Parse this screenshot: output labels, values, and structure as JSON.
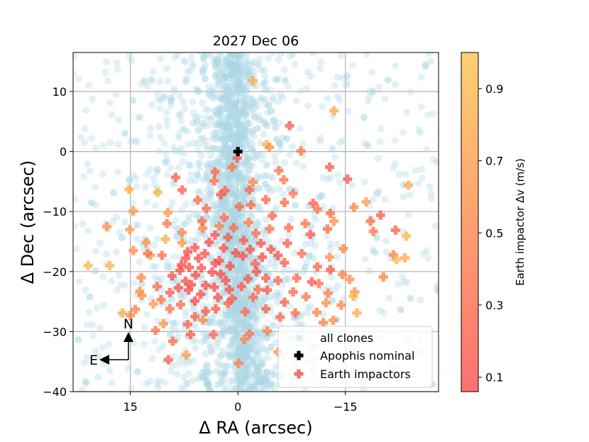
{
  "chart_data": {
    "type": "scatter",
    "title": "2027 Dec 06",
    "xlabel": "Δ RA (arcsec)",
    "ylabel": "Δ Dec (arcsec)",
    "xlim": [
      23,
      -28
    ],
    "ylim": [
      -40,
      16.5
    ],
    "xticks": [
      15,
      0,
      -15
    ],
    "xtick_labels": [
      "15",
      "0",
      "−15"
    ],
    "yticks": [
      10,
      0,
      -10,
      -20,
      -30,
      -40
    ],
    "ytick_labels": [
      "10",
      "0",
      "−10",
      "−20",
      "−30",
      "−40"
    ],
    "grid": true,
    "legend": {
      "position": "lower-right",
      "entries": [
        {
          "label": "all clones",
          "marker": "circle",
          "color": "#add8e6"
        },
        {
          "label": "Apophis nominal",
          "marker": "plus",
          "color": "#000000"
        },
        {
          "label": "Earth impactors",
          "marker": "plus",
          "color": "#e8443a"
        }
      ]
    },
    "colorbar": {
      "label": "Earth impactor Δv (m/s)",
      "range": [
        0.06,
        1.0
      ],
      "ticks": [
        0.1,
        0.3,
        0.5,
        0.7,
        0.9
      ],
      "tick_labels": [
        "0.1",
        "0.3",
        "0.5",
        "0.7",
        "0.9"
      ],
      "colormap": [
        "#ff4040",
        "#ffc040"
      ]
    },
    "compass": {
      "north": "N",
      "east": "E"
    },
    "series": [
      {
        "name": "Apophis nominal",
        "color": "#000000",
        "points": [
          [
            0.0,
            0.0
          ]
        ]
      },
      {
        "name": "Earth impactors",
        "note": "Δv in m/s per point: [ΔRA, ΔDec, Δv]",
        "points": [
          [
            -2.1,
            11.8,
            0.85
          ],
          [
            -13.4,
            6.8,
            0.8
          ],
          [
            -7.2,
            4.3,
            0.3
          ],
          [
            -4.0,
            1.2,
            0.9
          ],
          [
            -4.4,
            0.7,
            0.6
          ],
          [
            -8.8,
            0.1,
            0.4
          ],
          [
            0.1,
            -1.1,
            0.2
          ],
          [
            0.8,
            -2.6,
            0.4
          ],
          [
            3.2,
            -3.4,
            0.3
          ],
          [
            -5.7,
            -3.2,
            0.45
          ],
          [
            -12.8,
            -2.6,
            0.2
          ],
          [
            -15.3,
            -4.6,
            0.2
          ],
          [
            -6.4,
            -4.7,
            0.4
          ],
          [
            -2.1,
            -5.1,
            0.5
          ],
          [
            -1.6,
            -6.4,
            0.3
          ],
          [
            15.2,
            -6.3,
            0.8
          ],
          [
            14.6,
            -9.9,
            0.7
          ],
          [
            -17.9,
            -8.4,
            0.7
          ],
          [
            -23.8,
            -5.6,
            0.8
          ],
          [
            12.8,
            -15.2,
            0.6
          ],
          [
            15.1,
            -13.0,
            0.7
          ],
          [
            17.9,
            -19.0,
            0.9
          ],
          [
            14.6,
            -16.5,
            0.6
          ],
          [
            12.2,
            -17.3,
            0.7
          ],
          [
            11.8,
            -25.4,
            0.7
          ],
          [
            9.5,
            -26.2,
            0.4
          ],
          [
            14.3,
            -26.3,
            0.5
          ],
          [
            13.4,
            -24.0,
            0.6
          ],
          [
            13.7,
            -23.3,
            0.6
          ],
          [
            8.0,
            -25.5,
            0.3
          ],
          [
            6.5,
            -22.2,
            0.1
          ],
          [
            7.3,
            -21.6,
            0.1
          ],
          [
            8.1,
            -19.8,
            0.1
          ],
          [
            9.2,
            -20.7,
            0.2
          ],
          [
            7.9,
            -18.9,
            0.1
          ],
          [
            5.5,
            -17.8,
            0.1
          ],
          [
            4.0,
            -15.1,
            0.1
          ],
          [
            3.2,
            -18.6,
            0.1
          ],
          [
            5.9,
            -20.6,
            0.1
          ],
          [
            6.0,
            -24.9,
            0.1
          ],
          [
            4.5,
            -26.6,
            0.2
          ],
          [
            1.7,
            -21.5,
            0.1
          ],
          [
            0.8,
            -24.5,
            0.2
          ],
          [
            2.8,
            -24.3,
            0.1
          ],
          [
            -1.4,
            -21.2,
            0.2
          ],
          [
            -2.1,
            -24.3,
            0.3
          ],
          [
            -4.1,
            -23.1,
            0.2
          ],
          [
            -0.7,
            -17.4,
            0.1
          ],
          [
            -3.2,
            -15.3,
            0.15
          ],
          [
            -5.6,
            -17.3,
            0.15
          ],
          [
            -6.9,
            -15.3,
            0.2
          ],
          [
            -8.9,
            -17.0,
            0.3
          ],
          [
            -10.1,
            -13.8,
            0.2
          ],
          [
            -9.4,
            -12.0,
            0.35
          ],
          [
            -12.5,
            -12.9,
            0.3
          ],
          [
            -12.8,
            -17.6,
            0.6
          ],
          [
            -14.6,
            -20.5,
            0.5
          ],
          [
            -12.9,
            -19.7,
            0.2
          ],
          [
            -11.1,
            -19.2,
            0.3
          ],
          [
            -15.6,
            -21.3,
            0.6
          ],
          [
            -16.3,
            -23.4,
            0.6
          ],
          [
            -12.3,
            -25.2,
            0.6
          ],
          [
            -14.4,
            -25.6,
            0.5
          ],
          [
            -11.0,
            -26.8,
            0.5
          ],
          [
            -8.0,
            -26.9,
            0.3
          ],
          [
            -5.9,
            -27.6,
            0.3
          ],
          [
            -3.9,
            -26.2,
            0.3
          ],
          [
            -6.5,
            -25.1,
            0.2
          ],
          [
            -7.7,
            -23.4,
            0.3
          ],
          [
            -4.1,
            -29.9,
            0.5
          ],
          [
            -1.6,
            -30.4,
            0.4
          ],
          [
            -0.9,
            -31.3,
            0.5
          ],
          [
            -5.6,
            -33.4,
            0.6
          ],
          [
            -0.1,
            -35.3,
            0.5
          ],
          [
            3.4,
            -30.5,
            0.3
          ],
          [
            6.6,
            -30.5,
            0.2
          ],
          [
            9.1,
            -31.6,
            0.3
          ],
          [
            7.2,
            -33.9,
            0.7
          ],
          [
            9.7,
            -34.7,
            0.2
          ],
          [
            11.5,
            -29.8,
            0.4
          ],
          [
            7.0,
            -28.8,
            0.3
          ],
          [
            10.4,
            -28.7,
            0.6
          ],
          [
            4.9,
            -28.1,
            0.5
          ],
          [
            7.8,
            -15.2,
            0.7
          ],
          [
            7.8,
            -13.5,
            0.5
          ],
          [
            9.8,
            -10.2,
            0.7
          ],
          [
            10.1,
            -14.6,
            0.8
          ],
          [
            4.9,
            -12.8,
            0.5
          ],
          [
            4.4,
            -9.5,
            0.3
          ],
          [
            5.6,
            -8.1,
            0.4
          ],
          [
            7.8,
            -6.4,
            0.3
          ],
          [
            11.2,
            -6.8,
            0.9
          ],
          [
            8.7,
            -4.3,
            0.2
          ],
          [
            3.3,
            -4.9,
            0.3
          ],
          [
            1.8,
            -6.5,
            0.2
          ],
          [
            2.4,
            -7.2,
            0.2
          ],
          [
            -0.2,
            -9.2,
            0.3
          ],
          [
            -1.8,
            -8.9,
            0.3
          ],
          [
            -3.9,
            -8.0,
            0.3
          ],
          [
            -6.5,
            -8.5,
            0.3
          ],
          [
            -7.7,
            -7.0,
            0.4
          ],
          [
            -10.5,
            -8.6,
            0.25
          ],
          [
            -11.1,
            -9.6,
            0.4
          ],
          [
            -12.9,
            -10.3,
            0.3
          ],
          [
            -13.4,
            -11.6,
            0.6
          ],
          [
            -14.7,
            -16.2,
            0.5
          ],
          [
            -16.2,
            -9.3,
            0.5
          ],
          [
            -19.9,
            -10.6,
            0.2
          ],
          [
            -18.5,
            -11.6,
            0.3
          ],
          [
            -18.9,
            -13.3,
            0.4
          ],
          [
            -22.0,
            -13.1,
            0.3
          ],
          [
            -23.5,
            -14.1,
            0.9
          ],
          [
            -21.7,
            -17.2,
            0.5
          ],
          [
            -23.3,
            -17.7,
            0.8
          ],
          [
            -22.1,
            -18.0,
            0.9
          ],
          [
            -20.3,
            -20.9,
            0.5
          ],
          [
            -16.1,
            -24.1,
            0.9
          ],
          [
            -16.6,
            -26.9,
            0.8
          ],
          [
            -12.6,
            -23.6,
            0.5
          ],
          [
            -11.3,
            -22.0,
            0.4
          ],
          [
            -10.3,
            -21.7,
            0.2
          ],
          [
            -6.5,
            -18.5,
            0.2
          ],
          [
            -2.4,
            -18.7,
            0.2
          ],
          [
            -2.5,
            -13.6,
            0.3
          ],
          [
            -4.4,
            -12.9,
            0.4
          ],
          [
            -7.1,
            -12.7,
            0.3
          ],
          [
            -4.8,
            -10.7,
            0.3
          ],
          [
            -1.5,
            -11.8,
            0.4
          ],
          [
            1.4,
            -14.3,
            0.2
          ],
          [
            2.6,
            -12.4,
            0.5
          ],
          [
            1.9,
            -11.0,
            0.3
          ],
          [
            5.0,
            -11.6,
            0.3
          ],
          [
            16.1,
            -26.9,
            0.8
          ],
          [
            15.0,
            -27.3,
            0.5
          ],
          [
            20.9,
            -19.0,
            0.9
          ],
          [
            18.3,
            -12.5,
            0.6
          ],
          [
            13.5,
            -21.0,
            0.5
          ],
          [
            11.3,
            -22.5,
            0.3
          ],
          [
            12.6,
            -17.0,
            0.4
          ],
          [
            9.9,
            -12.0,
            0.4
          ],
          [
            10.6,
            -17.3,
            0.3
          ],
          [
            7.0,
            -16.7,
            0.1
          ],
          [
            6.0,
            -16.0,
            0.1
          ],
          [
            5.1,
            -19.4,
            0.1
          ],
          [
            4.5,
            -22.3,
            0.1
          ],
          [
            3.3,
            -22.6,
            0.1
          ],
          [
            2.4,
            -20.4,
            0.1
          ],
          [
            1.1,
            -19.1,
            0.1
          ],
          [
            0.3,
            -16.9,
            0.1
          ],
          [
            2.0,
            -16.1,
            0.1
          ],
          [
            -0.8,
            -14.8,
            0.2
          ],
          [
            6.8,
            -19.3,
            0.1
          ],
          [
            6.9,
            -23.1,
            0.1
          ],
          [
            5.2,
            -23.8,
            0.1
          ],
          [
            3.1,
            -26.2,
            0.2
          ],
          [
            1.4,
            -25.3,
            0.2
          ],
          [
            -0.5,
            -22.5,
            0.2
          ],
          [
            -2.6,
            -20.0,
            0.1
          ],
          [
            -3.9,
            -21.1,
            0.2
          ],
          [
            -5.6,
            -21.5,
            0.3
          ],
          [
            -8.2,
            -21.1,
            0.3
          ],
          [
            -9.5,
            -24.2,
            0.4
          ],
          [
            -11.9,
            -28.5,
            0.5
          ],
          [
            -13.3,
            -28.1,
            0.6
          ],
          [
            -3.4,
            -17.6,
            0.15
          ],
          [
            -4.6,
            -16.3,
            0.2
          ],
          [
            -1.7,
            -16.3,
            0.2
          ],
          [
            0.6,
            -12.7,
            0.3
          ],
          [
            3.2,
            -13.9,
            0.1
          ],
          [
            4.6,
            -17.0,
            0.1
          ],
          [
            7.3,
            -17.8,
            0.1
          ],
          [
            8.3,
            -22.7,
            0.1
          ],
          [
            9.5,
            -23.5,
            0.2
          ],
          [
            10.7,
            -24.7,
            0.4
          ],
          [
            6.0,
            -27.5,
            0.3
          ],
          [
            3.6,
            -20.1,
            0.1
          ],
          [
            2.6,
            -18.2,
            0.1
          ],
          [
            1.2,
            -23.0,
            0.15
          ],
          [
            -1.0,
            -26.7,
            0.3
          ],
          [
            -2.8,
            -23.0,
            0.3
          ]
        ]
      }
    ]
  }
}
